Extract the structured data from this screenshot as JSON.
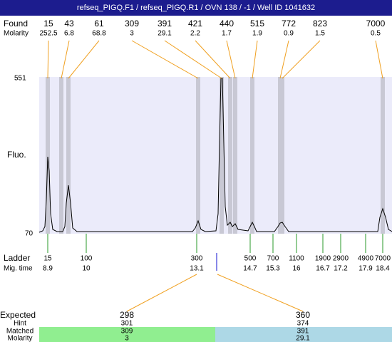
{
  "header": {
    "title": "refseq_PIGQ.F1 / refseq_PIGQ.R1 / OVN 138 / -1 / Well ID 1041632"
  },
  "found": {
    "label": "Found",
    "molarity_label": "Molarity",
    "peaks": [
      {
        "size": "15",
        "molarity": "252.5"
      },
      {
        "size": "43",
        "molarity": "6.8"
      },
      {
        "size": "61",
        "molarity": "68.8"
      },
      {
        "size": "309",
        "molarity": "3"
      },
      {
        "size": "391",
        "molarity": "29.1"
      },
      {
        "size": "421",
        "molarity": "2.2"
      },
      {
        "size": "440",
        "molarity": "1.7"
      },
      {
        "size": "515",
        "molarity": "1.9"
      },
      {
        "size": "772",
        "molarity": "0.9"
      },
      {
        "size": "823",
        "molarity": "1.5"
      },
      {
        "size": "7000",
        "molarity": "0.5"
      }
    ]
  },
  "plot": {
    "y_label": "Fluo.",
    "y_top": "551",
    "y_bottom": "70"
  },
  "ladder": {
    "label": "Ladder",
    "time_label": "Mig. time",
    "bands": [
      {
        "size": "15",
        "time": "8.9"
      },
      {
        "size": "100",
        "time": "10"
      },
      {
        "size": "300",
        "time": "13.1"
      },
      {
        "size": "500",
        "time": "14.7"
      },
      {
        "size": "700",
        "time": "15.3"
      },
      {
        "size": "1100",
        "time": "16"
      },
      {
        "size": "1900",
        "time": "16.7"
      },
      {
        "size": "2900",
        "time": "17.2"
      },
      {
        "size": "4900",
        "time": "17.9"
      },
      {
        "size": "7000",
        "time": "18.4"
      }
    ]
  },
  "expected": {
    "labels": [
      "Expected",
      "Hint",
      "Matched",
      "Molarity"
    ],
    "columns": [
      {
        "expected": "298",
        "hint": "301",
        "matched": "309",
        "molarity": "3"
      },
      {
        "expected": "360",
        "hint": "374",
        "matched": "391",
        "molarity": "29.1"
      }
    ]
  }
}
